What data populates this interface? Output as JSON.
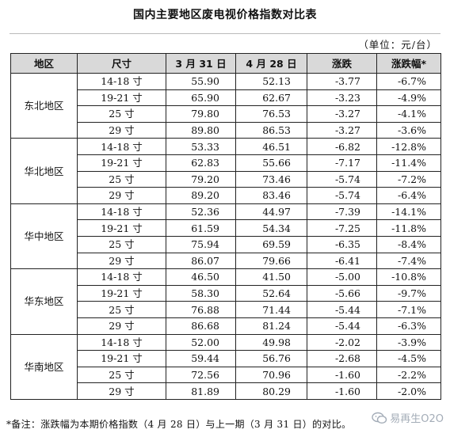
{
  "title": "国内主要地区废电视价格指数对比表",
  "unit_label": "（单位：元/台）",
  "headers": [
    "地区",
    "尺寸",
    "3 月 31 日",
    "4 月 28 日",
    "涨跌",
    "涨跌幅*"
  ],
  "regions": [
    {
      "name": "东北地区",
      "rows": [
        {
          "size": "14-18 寸",
          "mar31": "55.90",
          "apr28": "52.13",
          "change": "-3.77",
          "pct": "-6.7%"
        },
        {
          "size": "19-21 寸",
          "mar31": "65.90",
          "apr28": "62.67",
          "change": "-3.23",
          "pct": "-4.9%"
        },
        {
          "size": "25 寸",
          "mar31": "79.80",
          "apr28": "76.53",
          "change": "-3.27",
          "pct": "-4.1%"
        },
        {
          "size": "29 寸",
          "mar31": "89.80",
          "apr28": "86.53",
          "change": "-3.27",
          "pct": "-3.6%"
        }
      ]
    },
    {
      "name": "华北地区",
      "rows": [
        {
          "size": "14-18 寸",
          "mar31": "53.33",
          "apr28": "46.51",
          "change": "-6.82",
          "pct": "-12.8%"
        },
        {
          "size": "19-21 寸",
          "mar31": "62.83",
          "apr28": "55.66",
          "change": "-7.17",
          "pct": "-11.4%"
        },
        {
          "size": "25 寸",
          "mar31": "79.20",
          "apr28": "73.46",
          "change": "-5.74",
          "pct": "-7.2%"
        },
        {
          "size": "29 寸",
          "mar31": "89.20",
          "apr28": "83.46",
          "change": "-5.74",
          "pct": "-6.4%"
        }
      ]
    },
    {
      "name": "华中地区",
      "rows": [
        {
          "size": "14-18 寸",
          "mar31": "52.36",
          "apr28": "44.97",
          "change": "-7.39",
          "pct": "-14.1%"
        },
        {
          "size": "19-21 寸",
          "mar31": "61.59",
          "apr28": "54.34",
          "change": "-7.25",
          "pct": "-11.8%"
        },
        {
          "size": "25 寸",
          "mar31": "75.94",
          "apr28": "69.59",
          "change": "-6.35",
          "pct": "-8.4%"
        },
        {
          "size": "29 寸",
          "mar31": "86.07",
          "apr28": "79.66",
          "change": "-6.41",
          "pct": "-7.4%"
        }
      ]
    },
    {
      "name": "华东地区",
      "rows": [
        {
          "size": "14-18 寸",
          "mar31": "46.50",
          "apr28": "41.50",
          "change": "-5.00",
          "pct": "-10.8%"
        },
        {
          "size": "19-21 寸",
          "mar31": "58.30",
          "apr28": "52.64",
          "change": "-5.66",
          "pct": "-9.7%"
        },
        {
          "size": "25 寸",
          "mar31": "76.88",
          "apr28": "71.44",
          "change": "-5.44",
          "pct": "-7.1%"
        },
        {
          "size": "29 寸",
          "mar31": "86.68",
          "apr28": "81.24",
          "change": "-5.44",
          "pct": "-6.3%"
        }
      ]
    },
    {
      "name": "华南地区",
      "rows": [
        {
          "size": "14-18 寸",
          "mar31": "52.00",
          "apr28": "49.98",
          "change": "-2.02",
          "pct": "-3.9%"
        },
        {
          "size": "19-21 寸",
          "mar31": "59.44",
          "apr28": "56.76",
          "change": "-2.68",
          "pct": "-4.5%"
        },
        {
          "size": "25 寸",
          "mar31": "72.56",
          "apr28": "70.96",
          "change": "-1.60",
          "pct": "-2.2%"
        },
        {
          "size": "29 寸",
          "mar31": "81.89",
          "apr28": "80.29",
          "change": "-1.60",
          "pct": "-2.0%"
        }
      ]
    }
  ],
  "footnote": "*备注：涨跌幅为本期价格指数（4 月 28 日）与上一期（3 月 31 日）的对比。",
  "watermark": {
    "text": "易再生O2O",
    "icon": "wechat-icon"
  }
}
